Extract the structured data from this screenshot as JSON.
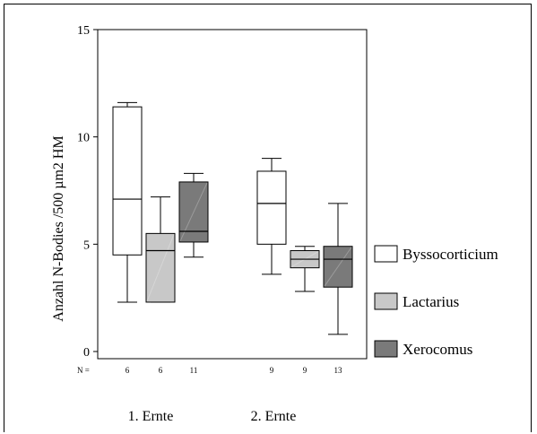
{
  "chart_data": {
    "type": "boxplot",
    "ylabel": "Anzahl N-Bodies /500 µm2 HM",
    "ylim": [
      0,
      15
    ],
    "yticks": [
      0,
      5,
      10,
      15
    ],
    "n_label": "N =",
    "groups": [
      "1. Ernte",
      "2. Ernte"
    ],
    "series": [
      {
        "name": "Byssocorticium",
        "color": "#ffffff"
      },
      {
        "name": "Lactarius",
        "color": "#c8c8c8"
      },
      {
        "name": "Xerocomus",
        "color": "#7a7a7a"
      }
    ],
    "boxes": [
      {
        "group": 0,
        "series": 0,
        "n": "6",
        "min": 2.3,
        "q1": 4.5,
        "median": 7.1,
        "q3": 11.4,
        "max": 11.6
      },
      {
        "group": 0,
        "series": 1,
        "n": "6",
        "min": 2.3,
        "q1": 2.3,
        "median": 4.7,
        "q3": 5.5,
        "max": 7.2
      },
      {
        "group": 0,
        "series": 2,
        "n": "11",
        "min": 4.4,
        "q1": 5.1,
        "median": 5.6,
        "q3": 7.9,
        "max": 8.3
      },
      {
        "group": 1,
        "series": 0,
        "n": "9",
        "min": 3.6,
        "q1": 5.0,
        "median": 6.9,
        "q3": 8.4,
        "max": 9.0
      },
      {
        "group": 1,
        "series": 1,
        "n": "9",
        "min": 2.8,
        "q1": 3.9,
        "median": 4.3,
        "q3": 4.7,
        "max": 4.9
      },
      {
        "group": 1,
        "series": 2,
        "n": "13",
        "min": 0.8,
        "q1": 3.0,
        "median": 4.3,
        "q3": 4.9,
        "max": 6.9
      }
    ]
  }
}
